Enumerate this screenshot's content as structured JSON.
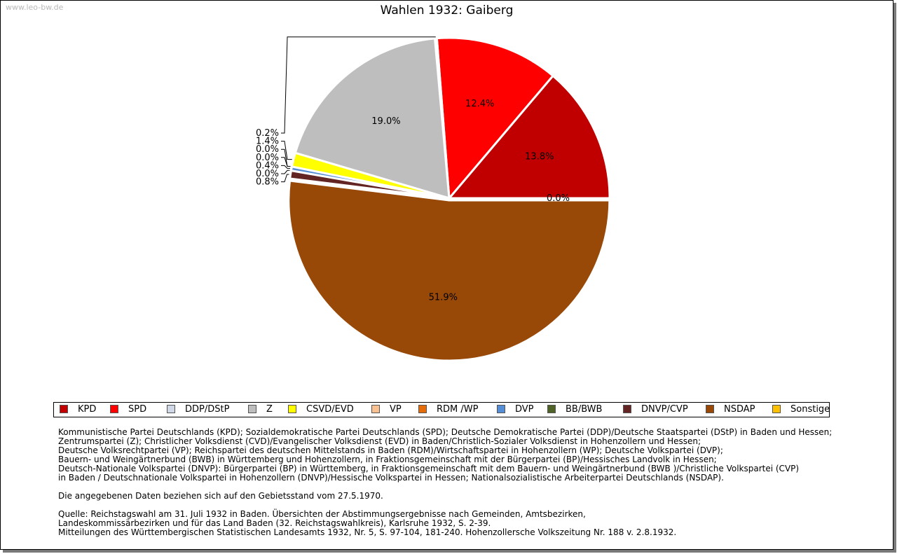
{
  "watermark": "www.leo-bw.de",
  "chart_data": {
    "type": "pie",
    "title": "Wahlen 1932: Gaiberg",
    "slices": [
      {
        "name": "KPD",
        "value": 13.8,
        "label": "13.8%",
        "color": "#c00000"
      },
      {
        "name": "SPD",
        "value": 12.4,
        "label": "12.4%",
        "color": "#ff0000"
      },
      {
        "name": "DDP/DStP",
        "value": 0.2,
        "label": "0.2%",
        "color": "#d0d8e8"
      },
      {
        "name": "Z",
        "value": 19.0,
        "label": "19.0%",
        "color": "#bebebe"
      },
      {
        "name": "CSVD/EVD",
        "value": 1.4,
        "label": "1.4%",
        "color": "#ffff00"
      },
      {
        "name": "VP",
        "value": 0.0,
        "label": "0.0%",
        "color": "#fac090"
      },
      {
        "name": "RDM /WP",
        "value": 0.0,
        "label": "0.0%",
        "color": "#e46c0a"
      },
      {
        "name": "DVP",
        "value": 0.4,
        "label": "0.4%",
        "color": "#558ed5"
      },
      {
        "name": "BB/BWB",
        "value": 0.0,
        "label": "0.0%",
        "color": "#4f6228"
      },
      {
        "name": "DNVP/CVP",
        "value": 0.8,
        "label": "0.8%",
        "color": "#632523"
      },
      {
        "name": "NSDAP",
        "value": 51.9,
        "label": "51.9%",
        "color": "#984807"
      },
      {
        "name": "Sonstige",
        "value": 0.0,
        "label": "0.0%",
        "color": "#ffc000"
      }
    ],
    "legend_position": "bottom"
  },
  "notes": {
    "parties": [
      "Kommunistische Partei Deutschlands (KPD); Sozialdemokratische Partei Deutschlands (SPD); Deutsche Demokratische Partei (DDP)/Deutsche Staatspartei (DStP) in Baden und Hessen;",
      "Zentrumspartei (Z); Christlicher Volksdienst (CVD)/Evangelischer Volksdienst (EVD) in Baden/Christlich-Sozialer Volksdienst in Hohenzollern und Hessen;",
      "Deutsche Volksrechtpartei (VP); Reichspartei des deutschen Mittelstands in Baden (RDM)/Wirtschaftspartei in Hohenzollern (WP); Deutsche Volkspartei (DVP);",
      "Bauern- und Weingärtnerbund (BWB) in Württemberg und Hohenzollern, in Fraktionsgemeinschaft mit der Bürgerpartei (BP)/Hessisches Landvolk in Hessen;",
      "Deutsch-Nationale Volkspartei (DNVP): Bürgerpartei (BP) in Württemberg, in Fraktionsgemeinschaft mit dem Bauern- und Weingärtnerbund (BWB )/Christliche Volkspartei (CVP)",
      "in Baden / Deutschnationale Volkspartei in Hohenzollern (DNVP)/Hessische Volkspartei in Hessen; Nationalsozialistische Arbeiterpartei Deutschlands (NSDAP)."
    ],
    "gebietsstand": "Die angegebenen Daten beziehen sich auf den Gebietsstand vom 27.5.1970.",
    "quelle": [
      "Quelle: Reichstagswahl am 31. Juli 1932 in Baden. Übersichten der Abstimmungsergebnisse nach Gemeinden, Amtsbezirken,",
      "Landeskommissärbezirken und für das Land Baden (32. Reichstagswahlkreis), Karlsruhe 1932, S. 2-39.",
      "Mitteilungen des Württembergischen Statistischen Landesamts 1932, Nr. 5, S. 97-104, 181-240. Hohenzollersche Volkszeitung Nr. 188 v. 2.8.1932."
    ]
  }
}
